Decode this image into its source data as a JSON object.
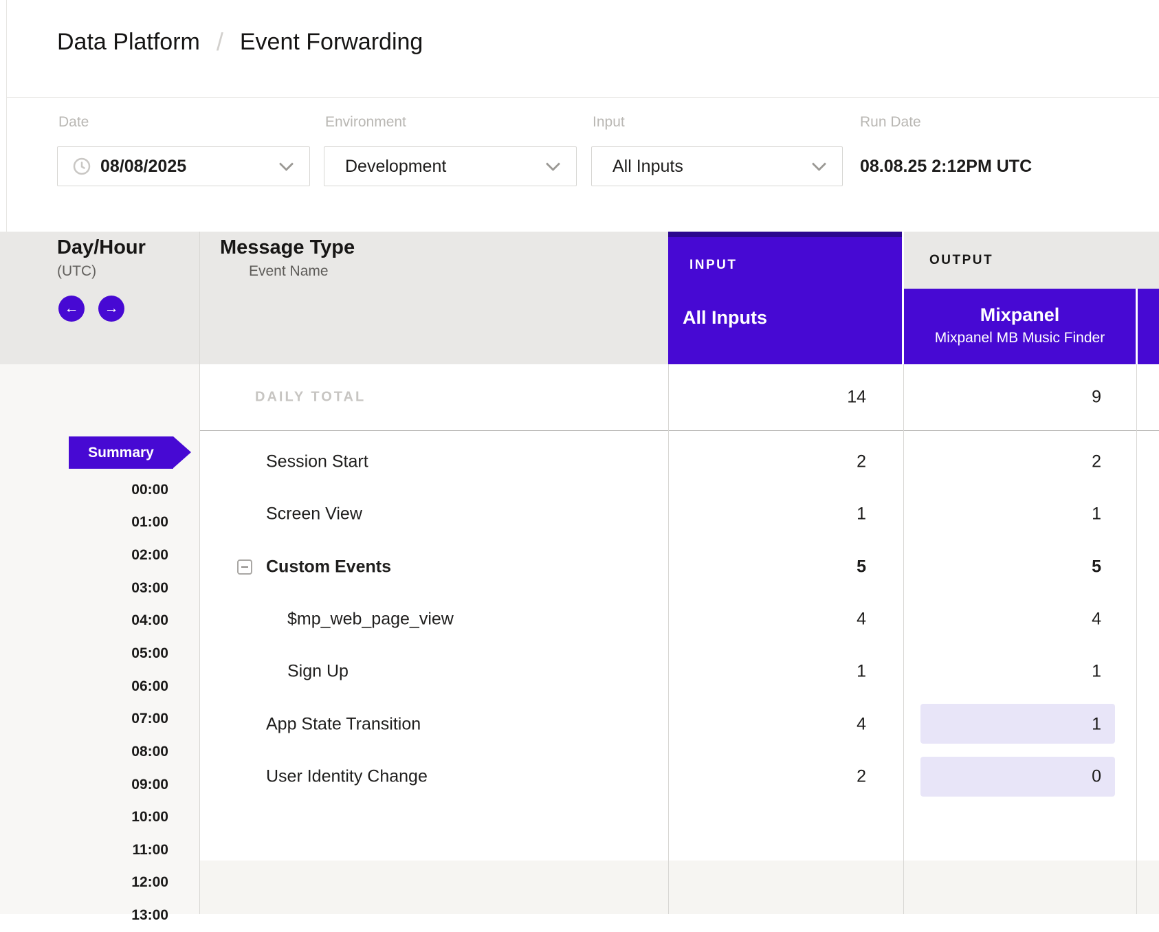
{
  "colors": {
    "accent_purple": "#4709d3",
    "accent_purple_dark": "#2c078f",
    "highlight_lavender": "#e8e5f8",
    "header_band_gray": "#e9e8e6",
    "hour_col_bg": "#f8f7f5",
    "footer_gray": "#f6f5f2"
  },
  "breadcrumb": {
    "section": "Data Platform",
    "separator": "/",
    "page": "Event Forwarding"
  },
  "filters": {
    "date": {
      "label": "Date",
      "value": "08/08/2025"
    },
    "environment": {
      "label": "Environment",
      "value": "Development"
    },
    "input": {
      "label": "Input",
      "value": "All Inputs"
    },
    "run_date": {
      "label": "Run Date",
      "value": "08.08.25 2:12PM UTC"
    }
  },
  "table": {
    "day_hour_title": "Day/Hour",
    "day_hour_subtitle": "(UTC)",
    "message_type_title": "Message Type",
    "message_type_subtitle": "Event Name",
    "nav": {
      "prev_icon": "←",
      "next_icon": "→"
    },
    "input_section": {
      "label": "INPUT",
      "selected": "All Inputs"
    },
    "output_section": {
      "label": "OUTPUT",
      "destination": "Mixpanel",
      "destination_subtitle": "Mixpanel MB Music Finder"
    },
    "daily_total": {
      "label": "DAILY TOTAL",
      "input": "14",
      "output": "9"
    },
    "rows": [
      {
        "name": "Session Start",
        "input": "2",
        "output": "2",
        "indent": 0,
        "bold": false,
        "collapsible": false,
        "output_highlight": false
      },
      {
        "name": "Screen View",
        "input": "1",
        "output": "1",
        "indent": 0,
        "bold": false,
        "collapsible": false,
        "output_highlight": false
      },
      {
        "name": "Custom Events",
        "input": "5",
        "output": "5",
        "indent": 0,
        "bold": true,
        "collapsible": true,
        "output_highlight": false
      },
      {
        "name": "$mp_web_page_view",
        "input": "4",
        "output": "4",
        "indent": 1,
        "bold": false,
        "collapsible": false,
        "output_highlight": false
      },
      {
        "name": "Sign Up",
        "input": "1",
        "output": "1",
        "indent": 1,
        "bold": false,
        "collapsible": false,
        "output_highlight": false
      },
      {
        "name": "App State Transition",
        "input": "4",
        "output": "1",
        "indent": 0,
        "bold": false,
        "collapsible": false,
        "output_highlight": true
      },
      {
        "name": "User Identity Change",
        "input": "2",
        "output": "0",
        "indent": 0,
        "bold": false,
        "collapsible": false,
        "output_highlight": true
      }
    ],
    "hours": {
      "summary_label": "Summary",
      "slots": [
        "00:00",
        "01:00",
        "02:00",
        "03:00",
        "04:00",
        "05:00",
        "06:00",
        "07:00",
        "08:00",
        "09:00",
        "10:00",
        "11:00",
        "12:00",
        "13:00"
      ]
    }
  }
}
